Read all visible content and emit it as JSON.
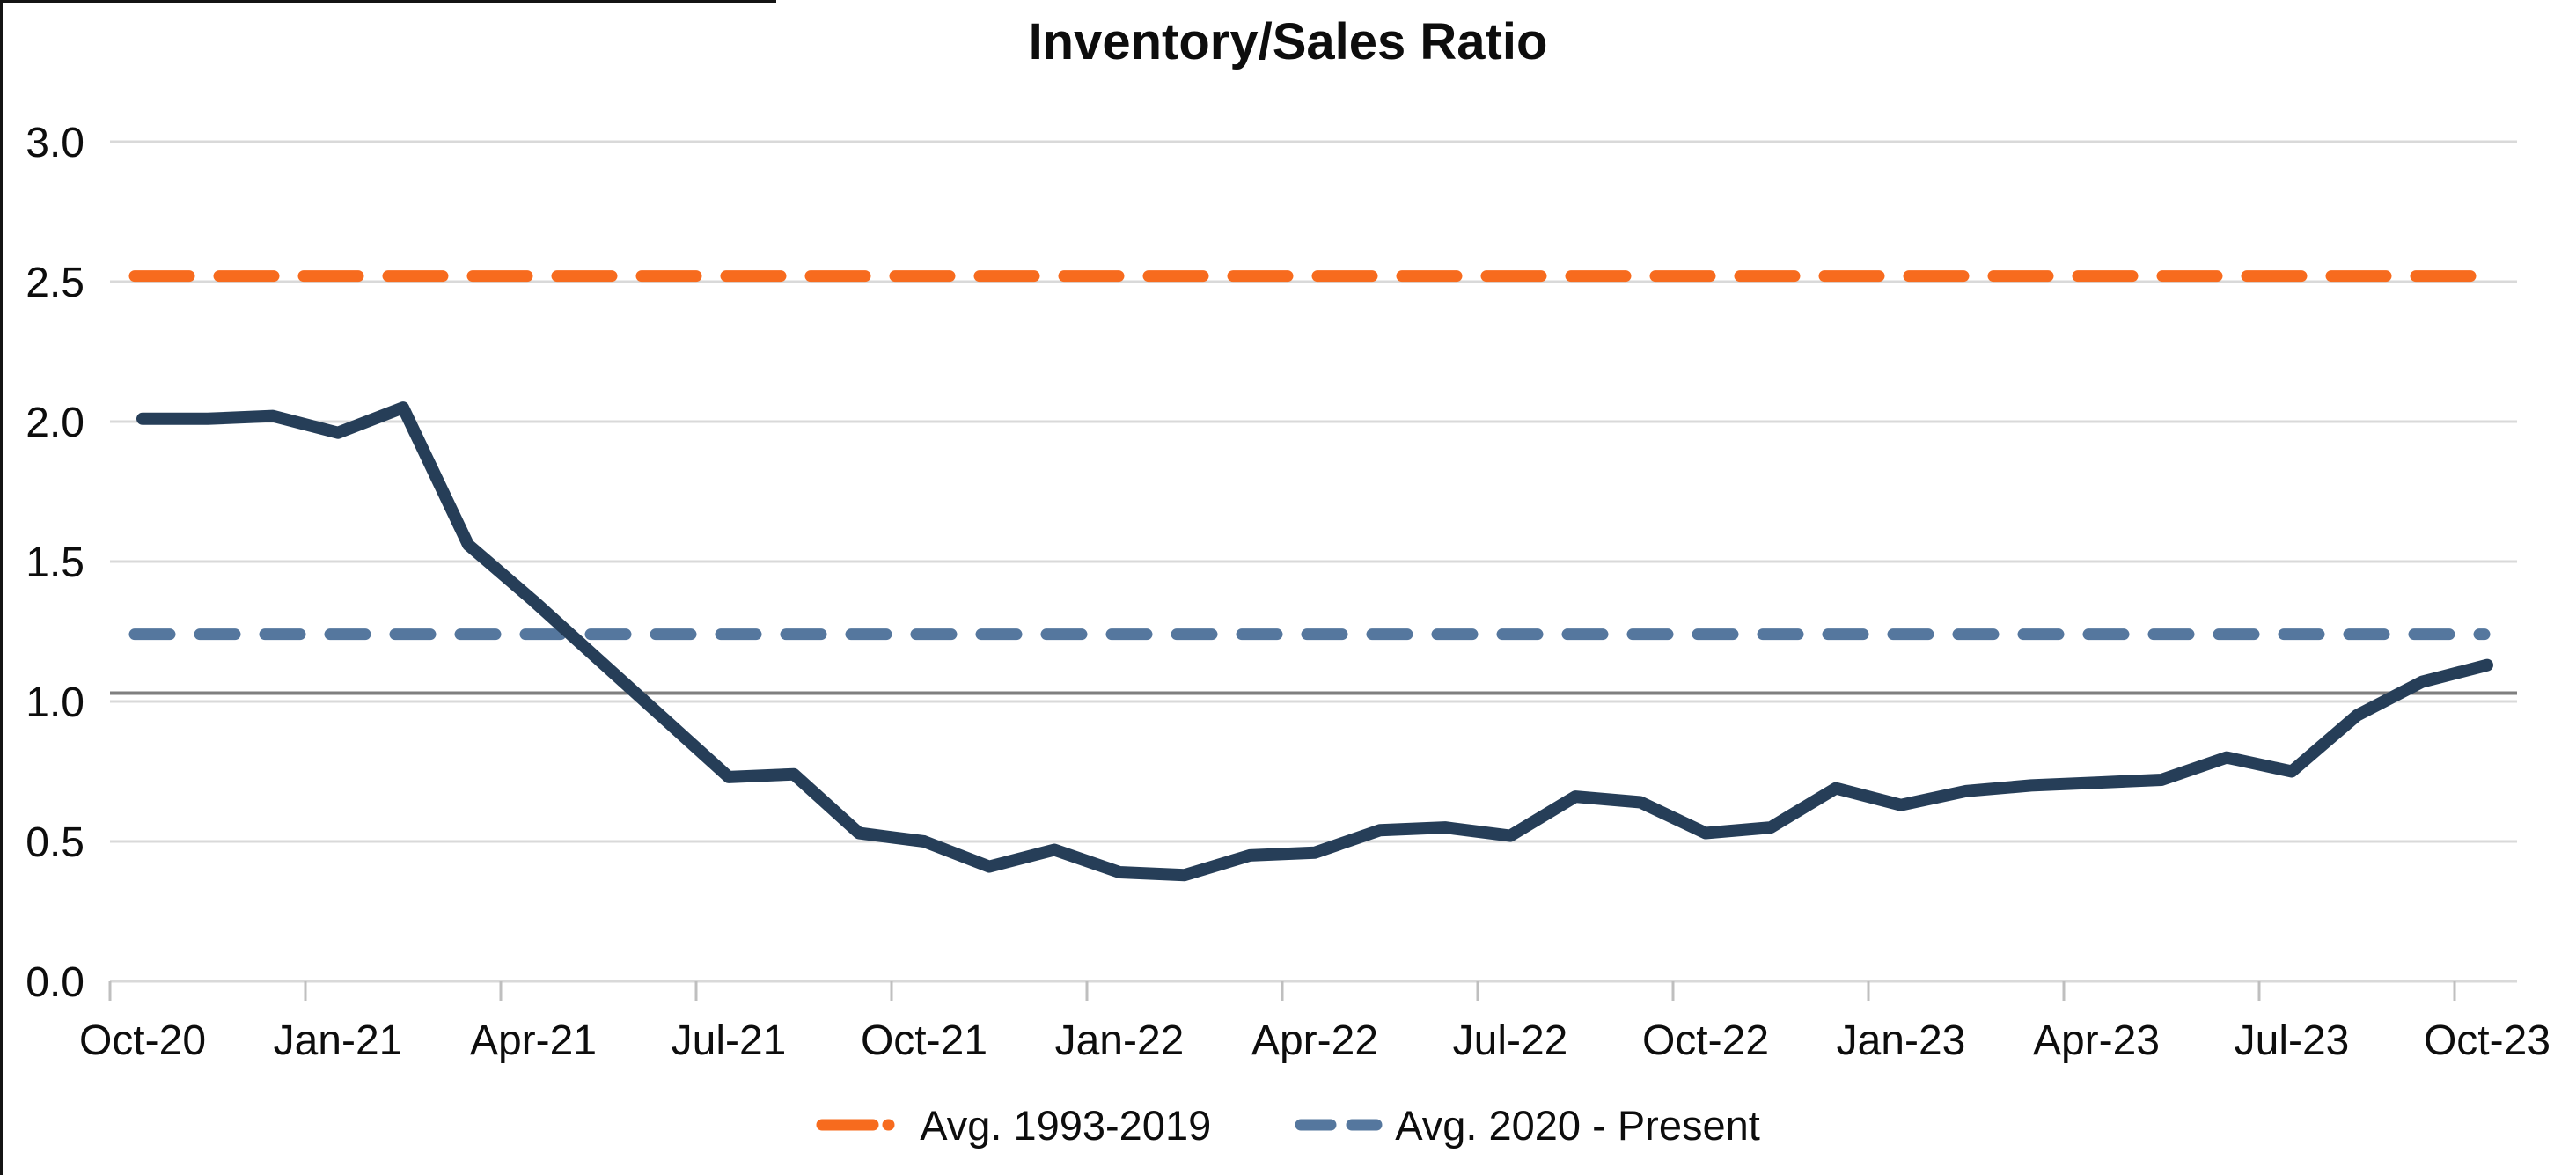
{
  "title": "Inventory/Sales Ratio",
  "colors": {
    "series_line": "#263E58",
    "avg_hist_line": "#F76B1E",
    "avg_recent_line": "#55779E",
    "reference_line": "#7F7F7F",
    "gridline": "#D9D9D9",
    "axis_tick": "#BFBFBF",
    "text": "#0d0d0d"
  },
  "legend": {
    "items": [
      {
        "label": "Avg. 1993-2019",
        "color": "#F76B1E",
        "marker": "dash-dot"
      },
      {
        "label": "Avg. 2020 - Present",
        "color": "#55779E",
        "marker": "dashes"
      }
    ]
  },
  "chart_data": {
    "type": "line",
    "title": "Inventory/Sales Ratio",
    "xlabel": "",
    "ylabel": "",
    "ylim": [
      0.0,
      3.0
    ],
    "y_ticks": [
      "0.0",
      "0.5",
      "1.0",
      "1.5",
      "2.0",
      "2.5",
      "3.0"
    ],
    "grid": "horizontal",
    "legend_position": "bottom",
    "x": [
      "Oct-20",
      "Nov-20",
      "Dec-20",
      "Jan-21",
      "Feb-21",
      "Mar-21",
      "Apr-21",
      "May-21",
      "Jun-21",
      "Jul-21",
      "Aug-21",
      "Sep-21",
      "Oct-21",
      "Nov-21",
      "Dec-21",
      "Jan-22",
      "Feb-22",
      "Mar-22",
      "Apr-22",
      "May-22",
      "Jun-22",
      "Jul-22",
      "Aug-22",
      "Sep-22",
      "Oct-22",
      "Nov-22",
      "Dec-22",
      "Jan-23",
      "Feb-23",
      "Mar-23",
      "Apr-23",
      "May-23",
      "Jun-23",
      "Jul-23",
      "Aug-23",
      "Sep-23",
      "Oct-23"
    ],
    "x_tick_labels": [
      "Oct-20",
      "Jan-21",
      "Apr-21",
      "Jul-21",
      "Oct-21",
      "Jan-22",
      "Apr-22",
      "Jul-22",
      "Oct-22",
      "Jan-23",
      "Apr-23",
      "Jul-23",
      "Oct-23"
    ],
    "series": [
      {
        "name": "Inventory/Sales Ratio",
        "type": "line",
        "style": "solid",
        "color": "#263E58",
        "width": 14,
        "values": [
          2.01,
          2.01,
          2.02,
          1.96,
          2.05,
          1.56,
          1.36,
          1.15,
          0.94,
          0.73,
          0.74,
          0.53,
          0.5,
          0.41,
          0.47,
          0.39,
          0.38,
          0.45,
          0.46,
          0.54,
          0.55,
          0.52,
          0.66,
          0.64,
          0.53,
          0.55,
          0.69,
          0.63,
          0.68,
          0.7,
          0.71,
          0.72,
          0.8,
          0.75,
          0.95,
          1.07,
          1.13
        ]
      },
      {
        "name": "Avg. 1993-2019",
        "type": "hline",
        "style": "dashed",
        "dash": "62 34",
        "color": "#F76B1E",
        "width": 13,
        "value": 2.52
      },
      {
        "name": "Avg. 2020 - Present",
        "type": "hline",
        "style": "dashed",
        "dash": "40 34",
        "color": "#55779E",
        "width": 13,
        "value": 1.24
      },
      {
        "name": "reference-line-1.0",
        "type": "hline",
        "style": "solid",
        "dash": "",
        "color": "#7F7F7F",
        "width": 4,
        "value": 1.03
      }
    ]
  }
}
